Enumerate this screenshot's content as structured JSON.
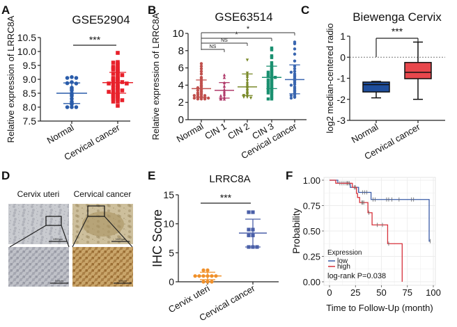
{
  "chart_data": [
    {
      "panel": "A",
      "type": "scatter",
      "title": "GSE52904",
      "ylabel": "Relative expression of LRRC8A",
      "ylim": [
        7.5,
        10.5
      ],
      "yticks": [
        "7.5",
        "8.0",
        "8.5",
        "9.0",
        "9.5",
        "10.0",
        "10.5"
      ],
      "categories": [
        "Normal",
        "Cervical cancer"
      ],
      "series": [
        {
          "color": "#2a5caa",
          "marker": "circle",
          "mean": 8.5,
          "sd": [
            8.13,
            8.87
          ],
          "values": [
            9.08,
            9.05,
            9.05,
            8.9,
            8.86,
            8.85,
            8.7,
            8.65,
            8.6,
            8.5,
            8.45,
            8.4,
            8.3,
            8.2,
            8.15,
            8.1,
            8.0,
            8.0,
            8.0
          ]
        },
        {
          "color": "#e8202a",
          "marker": "square",
          "mean": 8.88,
          "sd": [
            8.5,
            9.25
          ],
          "values": [
            9.95,
            9.62,
            9.6,
            9.55,
            9.5,
            9.45,
            9.4,
            9.4,
            9.38,
            9.35,
            9.3,
            9.25,
            9.2,
            9.2,
            9.15,
            9.1,
            9.05,
            9.05,
            9.0,
            9.0,
            8.95,
            8.95,
            8.9,
            8.9,
            8.9,
            8.85,
            8.85,
            8.8,
            8.8,
            8.75,
            8.7,
            8.7,
            8.65,
            8.6,
            8.6,
            8.6,
            8.55,
            8.5,
            8.5,
            8.45,
            8.45,
            8.4,
            8.4,
            8.35,
            8.35,
            8.3,
            8.3,
            8.25,
            8.2,
            8.2,
            8.05
          ]
        }
      ],
      "significance": [
        {
          "from": 0,
          "to": 1,
          "label": "***"
        }
      ]
    },
    {
      "panel": "B",
      "type": "scatter",
      "title": "GSE63514",
      "ylabel": "Relative expression of LRRC8A",
      "ylim": [
        0,
        10
      ],
      "yticks": [
        "0",
        "2",
        "4",
        "6",
        "8",
        "10"
      ],
      "categories": [
        "Normal",
        "CIN 1",
        "CIN 2",
        "CIN 3",
        "Cervical cancer"
      ],
      "series": [
        {
          "color": "#c0504d",
          "marker": "circle",
          "mean": 3.6,
          "sd": [
            2.6,
            4.6
          ],
          "values": [
            6.5,
            6.2,
            5.9,
            5.6,
            5.3,
            4.9,
            4.8,
            4.6,
            4.4,
            4.2,
            4.0,
            3.9,
            3.8,
            3.7,
            3.6,
            3.5,
            3.4,
            3.3,
            3.2,
            3.1,
            3.0,
            2.9,
            2.9,
            2.8,
            2.8,
            2.7,
            2.7,
            2.6,
            2.6,
            2.5,
            2.5,
            2.5,
            2.4,
            2.4,
            2.4
          ]
        },
        {
          "color": "#b03a6a",
          "marker": "triangle",
          "mean": 3.4,
          "sd": [
            2.5,
            4.3
          ],
          "values": [
            5.2,
            4.9,
            4.3,
            3.9,
            3.5,
            3.3,
            3.1,
            2.9,
            2.8,
            2.6,
            2.5,
            2.4,
            2.4
          ]
        },
        {
          "color": "#7a8a2a",
          "marker": "triangle-down",
          "mean": 3.8,
          "sd": [
            2.8,
            5.3
          ],
          "values": [
            6.9,
            5.4,
            5.2,
            5.0,
            4.8,
            4.5,
            4.2,
            4.0,
            3.8,
            3.6,
            3.4,
            3.3,
            3.1,
            3.0,
            2.9,
            2.8,
            2.7,
            2.6,
            2.6,
            2.5
          ]
        },
        {
          "color": "#1a9070",
          "marker": "square",
          "mean": 4.9,
          "sd": [
            3.6,
            6.2
          ],
          "values": [
            8.3,
            8.1,
            7.4,
            7.2,
            6.6,
            6.3,
            6.1,
            5.9,
            5.7,
            5.6,
            5.5,
            5.4,
            5.3,
            5.2,
            5.1,
            5.0,
            5.0,
            4.9,
            4.8,
            4.7,
            4.6,
            4.5,
            4.4,
            4.3,
            4.2,
            4.1,
            4.0,
            3.9,
            3.8,
            3.7,
            3.6,
            3.5,
            3.4,
            3.3,
            3.2,
            3.1,
            3.0,
            2.8,
            2.6,
            2.4,
            2.4
          ]
        },
        {
          "color": "#3a66b0",
          "marker": "circle",
          "mean": 4.65,
          "sd": [
            3.0,
            6.35
          ],
          "values": [
            9.0,
            8.8,
            8.2,
            7.6,
            6.8,
            6.2,
            5.9,
            5.6,
            5.5,
            5.3,
            5.1,
            5.0,
            4.8,
            4.6,
            4.5,
            4.3,
            4.1,
            4.0,
            3.8,
            3.6,
            3.4,
            3.3,
            3.1,
            3.0,
            2.9,
            2.8,
            2.7,
            2.6,
            2.5
          ]
        }
      ],
      "significance": [
        {
          "from": 0,
          "to": 1,
          "label": "NS"
        },
        {
          "from": 0,
          "to": 2,
          "label": "NS"
        },
        {
          "from": 0,
          "to": 3,
          "label": "*"
        },
        {
          "from": 0,
          "to": 4,
          "label": "*"
        }
      ]
    },
    {
      "panel": "C",
      "type": "box",
      "title": "Biewenga Cervix",
      "ylabel": "log2 median-centered radio",
      "ylim": [
        -3,
        1
      ],
      "yticks": [
        "-3",
        "-2",
        "-1",
        "0",
        "1"
      ],
      "categories": [
        "Normal",
        "Cervical cancer"
      ],
      "reference_line": 0,
      "boxes": [
        {
          "color": "#1f4e9c",
          "min": -1.93,
          "q1": -1.65,
          "median": -1.3,
          "q3": -1.18,
          "max": -1.15
        },
        {
          "color": "#e8474c",
          "min": -2.0,
          "q1": -1.02,
          "median": -0.72,
          "q3": -0.25,
          "max": 0.72
        }
      ],
      "significance": [
        {
          "from": 0,
          "to": 1,
          "label": "***"
        }
      ]
    },
    {
      "panel": "D",
      "type": "image",
      "labels": [
        "Cervix uteri",
        "Cervical cancer"
      ],
      "scale_bars": [
        "1000μm",
        "1000μm",
        "500μm",
        "500μm"
      ]
    },
    {
      "panel": "E",
      "type": "scatter",
      "title": "LRRC8A",
      "ylabel": "IHC Score",
      "ylim": [
        0,
        15
      ],
      "yticks": [
        "0",
        "5",
        "10",
        "15"
      ],
      "categories": [
        "Cervix uteri",
        "Cervical cancer"
      ],
      "series": [
        {
          "color": "#f0902a",
          "marker": "circle",
          "mean": 1.0,
          "sd": [
            0.35,
            1.65
          ],
          "values": [
            2,
            2,
            1,
            1,
            1,
            1,
            1,
            1,
            0,
            0,
            0
          ]
        },
        {
          "color": "#4a5fa8",
          "marker": "square",
          "mean": 8.4,
          "sd": [
            6.0,
            10.8
          ],
          "values": [
            12,
            12,
            9,
            9,
            8,
            8,
            6,
            6,
            6
          ]
        }
      ],
      "significance": [
        {
          "from": 0,
          "to": 1,
          "label": "***"
        }
      ]
    },
    {
      "panel": "F",
      "type": "line",
      "xlabel": "Time to Follow-Up (month)",
      "ylabel": "Probability",
      "xlim": [
        0,
        100
      ],
      "ylim": [
        0,
        1
      ],
      "xticks": [
        "0",
        "25",
        "50",
        "75",
        "100"
      ],
      "yticks": [
        "0.00",
        "0.25",
        "0.50",
        "0.75",
        "1.00"
      ],
      "legend": {
        "title": "Expression",
        "position": "bottom-left"
      },
      "annotation": "log-rank P=0.038",
      "series": [
        {
          "name": "low",
          "color": "#3a5ca8",
          "steps": [
            [
              0,
              1
            ],
            [
              8,
              0.97
            ],
            [
              20,
              0.93
            ],
            [
              28,
              0.88
            ],
            [
              40,
              0.81
            ],
            [
              96,
              0.4
            ]
          ],
          "end": 97,
          "censor": [
            [
              12,
              0.97
            ],
            [
              14,
              0.97
            ],
            [
              16,
              0.97
            ],
            [
              17,
              0.97
            ],
            [
              18,
              0.97
            ],
            [
              24,
              0.93
            ],
            [
              25,
              0.93
            ],
            [
              32,
              0.88
            ],
            [
              34,
              0.88
            ],
            [
              36,
              0.88
            ],
            [
              42,
              0.81
            ],
            [
              44,
              0.81
            ],
            [
              55,
              0.81
            ],
            [
              57,
              0.81
            ],
            [
              60,
              0.81
            ],
            [
              67,
              0.81
            ],
            [
              79,
              0.81
            ],
            [
              81,
              0.81
            ],
            [
              97,
              0.4
            ]
          ]
        },
        {
          "name": "high",
          "color": "#d6303a",
          "steps": [
            [
              0,
              1
            ],
            [
              6,
              0.97
            ],
            [
              22,
              0.93
            ],
            [
              26,
              0.87
            ],
            [
              27,
              0.83
            ],
            [
              29,
              0.78
            ],
            [
              37,
              0.68
            ],
            [
              41,
              0.56
            ],
            [
              56,
              0.375
            ],
            [
              70,
              0
            ]
          ],
          "end": 70,
          "censor": [
            [
              10,
              0.97
            ],
            [
              19,
              0.97
            ],
            [
              24,
              0.93
            ],
            [
              31,
              0.78
            ],
            [
              32,
              0.78
            ],
            [
              33,
              0.78
            ],
            [
              38,
              0.68
            ],
            [
              46,
              0.56
            ],
            [
              51,
              0.56
            ],
            [
              57,
              0.375
            ]
          ]
        }
      ]
    }
  ]
}
